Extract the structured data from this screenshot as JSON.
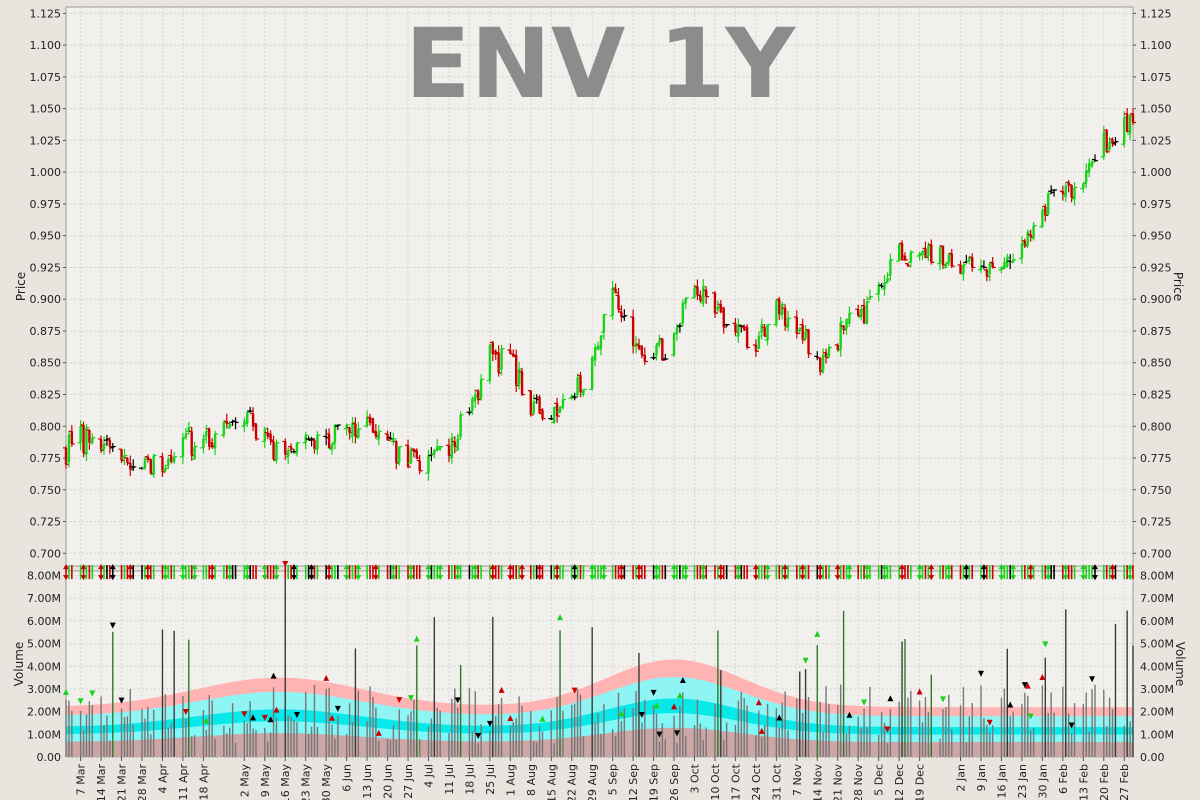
{
  "chart_data": {
    "type": "ohlc",
    "title": "ENV 1Y",
    "price_panel": {
      "ylabel": "Price",
      "ylim": [
        0.69,
        1.13
      ],
      "yticks": [
        "0.700",
        "0.725",
        "0.750",
        "0.775",
        "0.800",
        "0.825",
        "0.850",
        "0.875",
        "0.900",
        "0.925",
        "0.950",
        "0.975",
        "1.000",
        "1.025",
        "1.050",
        "1.075",
        "1.100",
        "1.125"
      ],
      "key_closes": [
        [
          "2011-03-02",
          0.78
        ],
        [
          "2011-03-07",
          0.79
        ],
        [
          "2011-03-14",
          0.785
        ],
        [
          "2011-03-21",
          0.77
        ],
        [
          "2011-03-28",
          0.77
        ],
        [
          "2011-04-04",
          0.775
        ],
        [
          "2011-04-11",
          0.79
        ],
        [
          "2011-04-18",
          0.785
        ],
        [
          "2011-04-25",
          0.8
        ],
        [
          "2011-05-02",
          0.815
        ],
        [
          "2011-05-09",
          0.79
        ],
        [
          "2011-05-16",
          0.775
        ],
        [
          "2011-05-23",
          0.795
        ],
        [
          "2011-05-30",
          0.79
        ],
        [
          "2011-06-06",
          0.795
        ],
        [
          "2011-06-13",
          0.8
        ],
        [
          "2011-06-20",
          0.785
        ],
        [
          "2011-06-27",
          0.775
        ],
        [
          "2011-07-04",
          0.775
        ],
        [
          "2011-07-11",
          0.785
        ],
        [
          "2011-07-18",
          0.815
        ],
        [
          "2011-07-25",
          0.855
        ],
        [
          "2011-08-01",
          0.85
        ],
        [
          "2011-08-08",
          0.815
        ],
        [
          "2011-08-15",
          0.8
        ],
        [
          "2011-08-22",
          0.83
        ],
        [
          "2011-08-29",
          0.845
        ],
        [
          "2011-09-05",
          0.915
        ],
        [
          "2011-09-12",
          0.865
        ],
        [
          "2011-09-19",
          0.855
        ],
        [
          "2011-09-26",
          0.87
        ],
        [
          "2011-10-03",
          0.915
        ],
        [
          "2011-10-10",
          0.885
        ],
        [
          "2011-10-17",
          0.88
        ],
        [
          "2011-10-24",
          0.86
        ],
        [
          "2011-10-31",
          0.895
        ],
        [
          "2011-11-07",
          0.88
        ],
        [
          "2011-11-14",
          0.85
        ],
        [
          "2011-11-21",
          0.87
        ],
        [
          "2011-11-28",
          0.885
        ],
        [
          "2011-12-05",
          0.905
        ],
        [
          "2011-12-12",
          0.935
        ],
        [
          "2011-12-19",
          0.935
        ],
        [
          "2011-12-26",
          0.935
        ],
        [
          "2012-01-02",
          0.925
        ],
        [
          "2012-01-09",
          0.92
        ],
        [
          "2012-01-16",
          0.93
        ],
        [
          "2012-01-23",
          0.935
        ],
        [
          "2012-01-30",
          0.975
        ],
        [
          "2012-02-06",
          0.98
        ],
        [
          "2012-02-13",
          1.0
        ],
        [
          "2012-02-20",
          1.02
        ],
        [
          "2012-02-27",
          1.045
        ],
        [
          "2012-03-01",
          1.04
        ]
      ]
    },
    "volume_panel": {
      "ylabel": "Volume",
      "ylim": [
        0,
        8200000
      ],
      "yticks": [
        "0.00",
        "1.00M",
        "2.00M",
        "3.00M",
        "4.00M",
        "5.00M",
        "6.00M",
        "7.00M",
        "8.00M"
      ]
    },
    "x_axis": {
      "type": "date",
      "range": [
        "2011-03-02",
        "2012-03-01"
      ],
      "ticks": [
        "7 Mar",
        "14 Mar",
        "21 Mar",
        "28 Mar",
        "4 Apr",
        "11 Apr",
        "18 Apr",
        "2 May",
        "9 May",
        "16 May",
        "23 May",
        "30 May",
        "6 Jun",
        "13 Jun",
        "20 Jun",
        "27 Jun",
        "4 Jul",
        "11 Jul",
        "18 Jul",
        "25 Jul",
        "1 Aug",
        "8 Aug",
        "15 Aug",
        "22 Aug",
        "29 Aug",
        "5 Sep",
        "12 Sep",
        "19 Sep",
        "26 Sep",
        "3 Oct",
        "10 Oct",
        "17 Oct",
        "24 Oct",
        "31 Oct",
        "7 Nov",
        "14 Nov",
        "21 Nov",
        "28 Nov",
        "5 Dec",
        "12 Dec",
        "19 Dec",
        "2 Jan",
        "9 Jan",
        "16 Jan",
        "23 Jan",
        "30 Jan",
        "6 Feb",
        "13 Feb",
        "20 Feb",
        "27 Feb"
      ]
    },
    "colors": {
      "up": "#19d219",
      "down": "#c80000",
      "flat": "#000000",
      "title": "#8c8c8c",
      "plot_bg": "#f1f0ec",
      "band_outer": "#ffb0b0",
      "band_mid": "#88f8f8",
      "band_inner": "#00e8e8",
      "band_core": "#d0a0a0"
    },
    "grid": true,
    "legend": "none"
  }
}
